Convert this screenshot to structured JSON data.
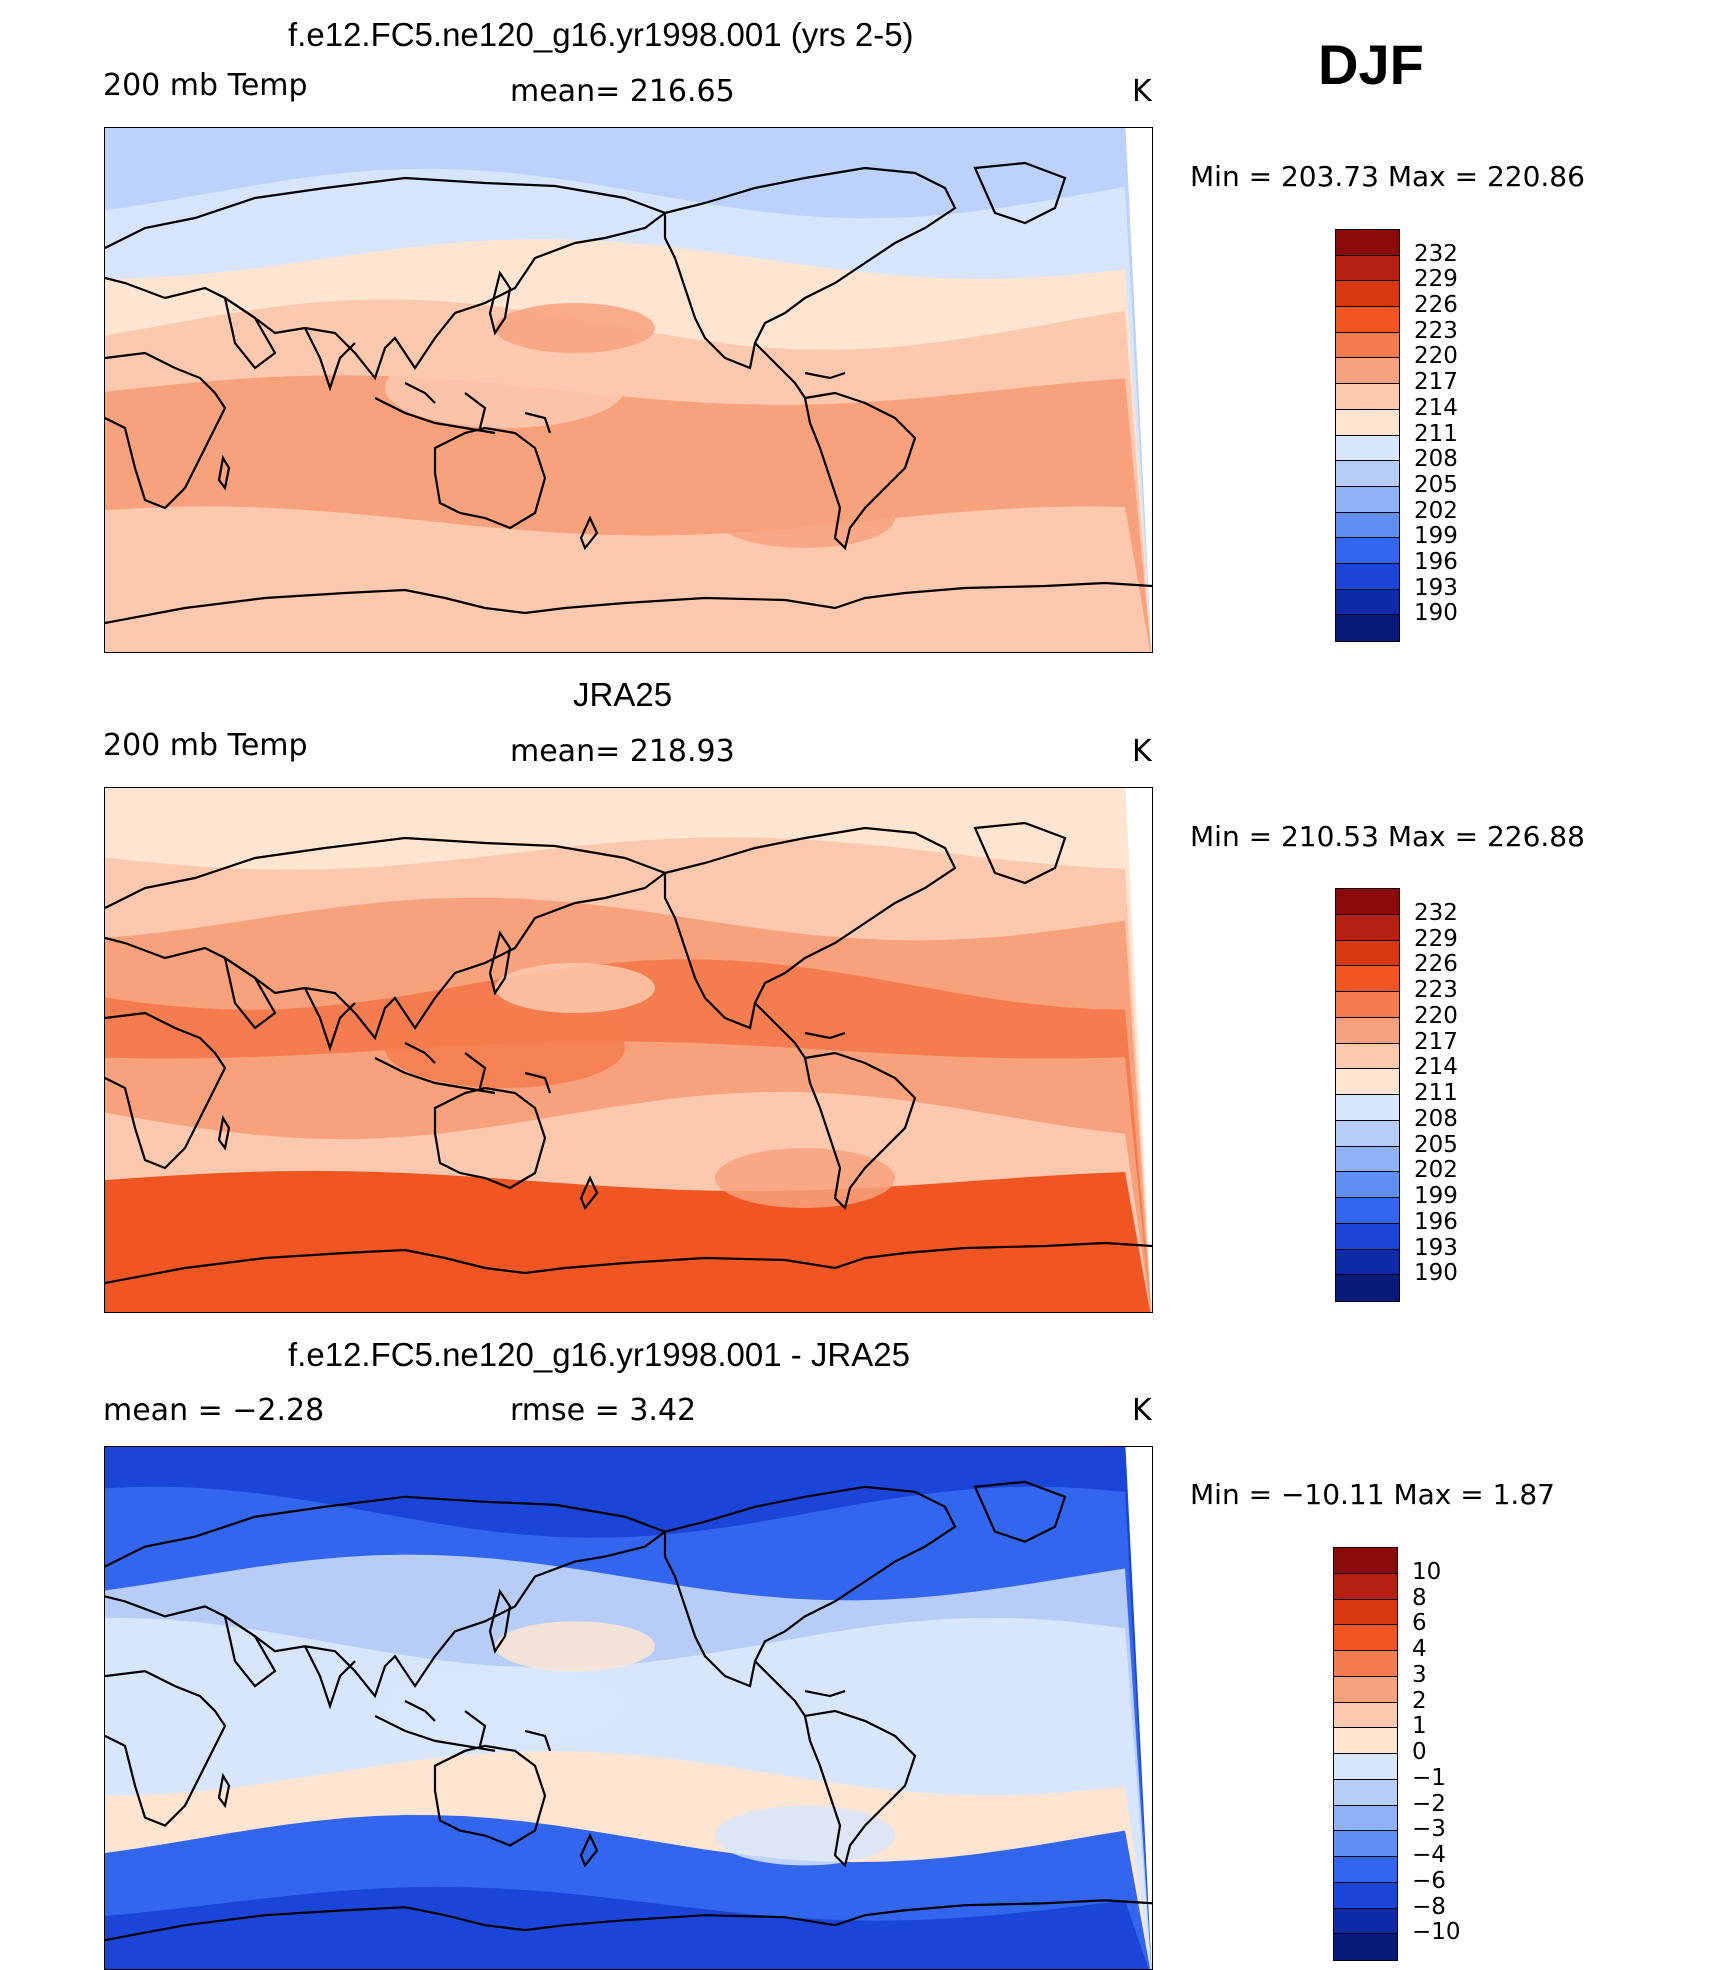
{
  "season": "DJF",
  "panels": [
    {
      "id": "model",
      "title": "f.e12.FC5.ne120_g16.yr1998.001 (yrs 2-5)",
      "left_label": "200 mb Temp",
      "center_label": "mean= 216.65",
      "units": "K",
      "minmax": "Min = 203.73 Max = 220.86",
      "colorbar": {
        "labels": [
          "232",
          "229",
          "226",
          "223",
          "220",
          "217",
          "214",
          "211",
          "208",
          "205",
          "202",
          "199",
          "196",
          "193",
          "190"
        ],
        "colors": [
          "#8b0a0a",
          "#b52010",
          "#d8380f",
          "#f05522",
          "#f47c4e",
          "#f7a27d",
          "#fcc9ae",
          "#fde5d2",
          "#d8e6fb",
          "#b7cdf8",
          "#8fb2f5",
          "#5f8ff0",
          "#3366ef",
          "#1a45d8",
          "#0f2aa6",
          "#081a7a"
        ]
      },
      "map_fill": [
        "#bcd1fb",
        "#d6e5fb",
        "#fde5d2",
        "#fcc9ae",
        "#f7a27d",
        "#f7a27d",
        "#fcc9ae",
        "#fcc9ae"
      ]
    },
    {
      "id": "obs",
      "title": "JRA25",
      "left_label": "200 mb Temp",
      "center_label": "mean= 218.93",
      "units": "K",
      "minmax": "Min = 210.53 Max = 226.88",
      "colorbar": {
        "labels": [
          "232",
          "229",
          "226",
          "223",
          "220",
          "217",
          "214",
          "211",
          "208",
          "205",
          "202",
          "199",
          "196",
          "193",
          "190"
        ],
        "colors": [
          "#8b0a0a",
          "#b52010",
          "#d8380f",
          "#f05522",
          "#f47c4e",
          "#f7a27d",
          "#fcc9ae",
          "#fde5d2",
          "#d8e6fb",
          "#b7cdf8",
          "#8fb2f5",
          "#5f8ff0",
          "#3366ef",
          "#1a45d8",
          "#0f2aa6",
          "#081a7a"
        ]
      },
      "map_fill": [
        "#fde5d2",
        "#fcc9ae",
        "#f7a27d",
        "#f47c4e",
        "#f7a27d",
        "#fcc9ae",
        "#f05522",
        "#f05522"
      ]
    },
    {
      "id": "diff",
      "title": "f.e12.FC5.ne120_g16.yr1998.001 - JRA25",
      "left_label": "mean =    −2.28",
      "center_label": "rmse =    3.42",
      "units": "K",
      "minmax": "Min = −10.11 Max =    1.87",
      "colorbar": {
        "labels": [
          "10",
          "8",
          "6",
          "4",
          "3",
          "2",
          "1",
          "0",
          "−1",
          "−2",
          "−3",
          "−4",
          "−6",
          "−8",
          "−10"
        ],
        "colors": [
          "#8b0a0a",
          "#b52010",
          "#d8380f",
          "#f05522",
          "#f47c4e",
          "#f7a27d",
          "#fcc9ae",
          "#fde5d2",
          "#d8e6fb",
          "#b7cdf8",
          "#8fb2f5",
          "#5f8ff0",
          "#3366ef",
          "#1a45d8",
          "#0f2aa6",
          "#081a7a"
        ]
      },
      "map_fill": [
        "#1a45d8",
        "#3366ef",
        "#b7cdf8",
        "#d8e6fb",
        "#d8e6fb",
        "#fde5d2",
        "#3366ef",
        "#1a45d8"
      ]
    }
  ]
}
